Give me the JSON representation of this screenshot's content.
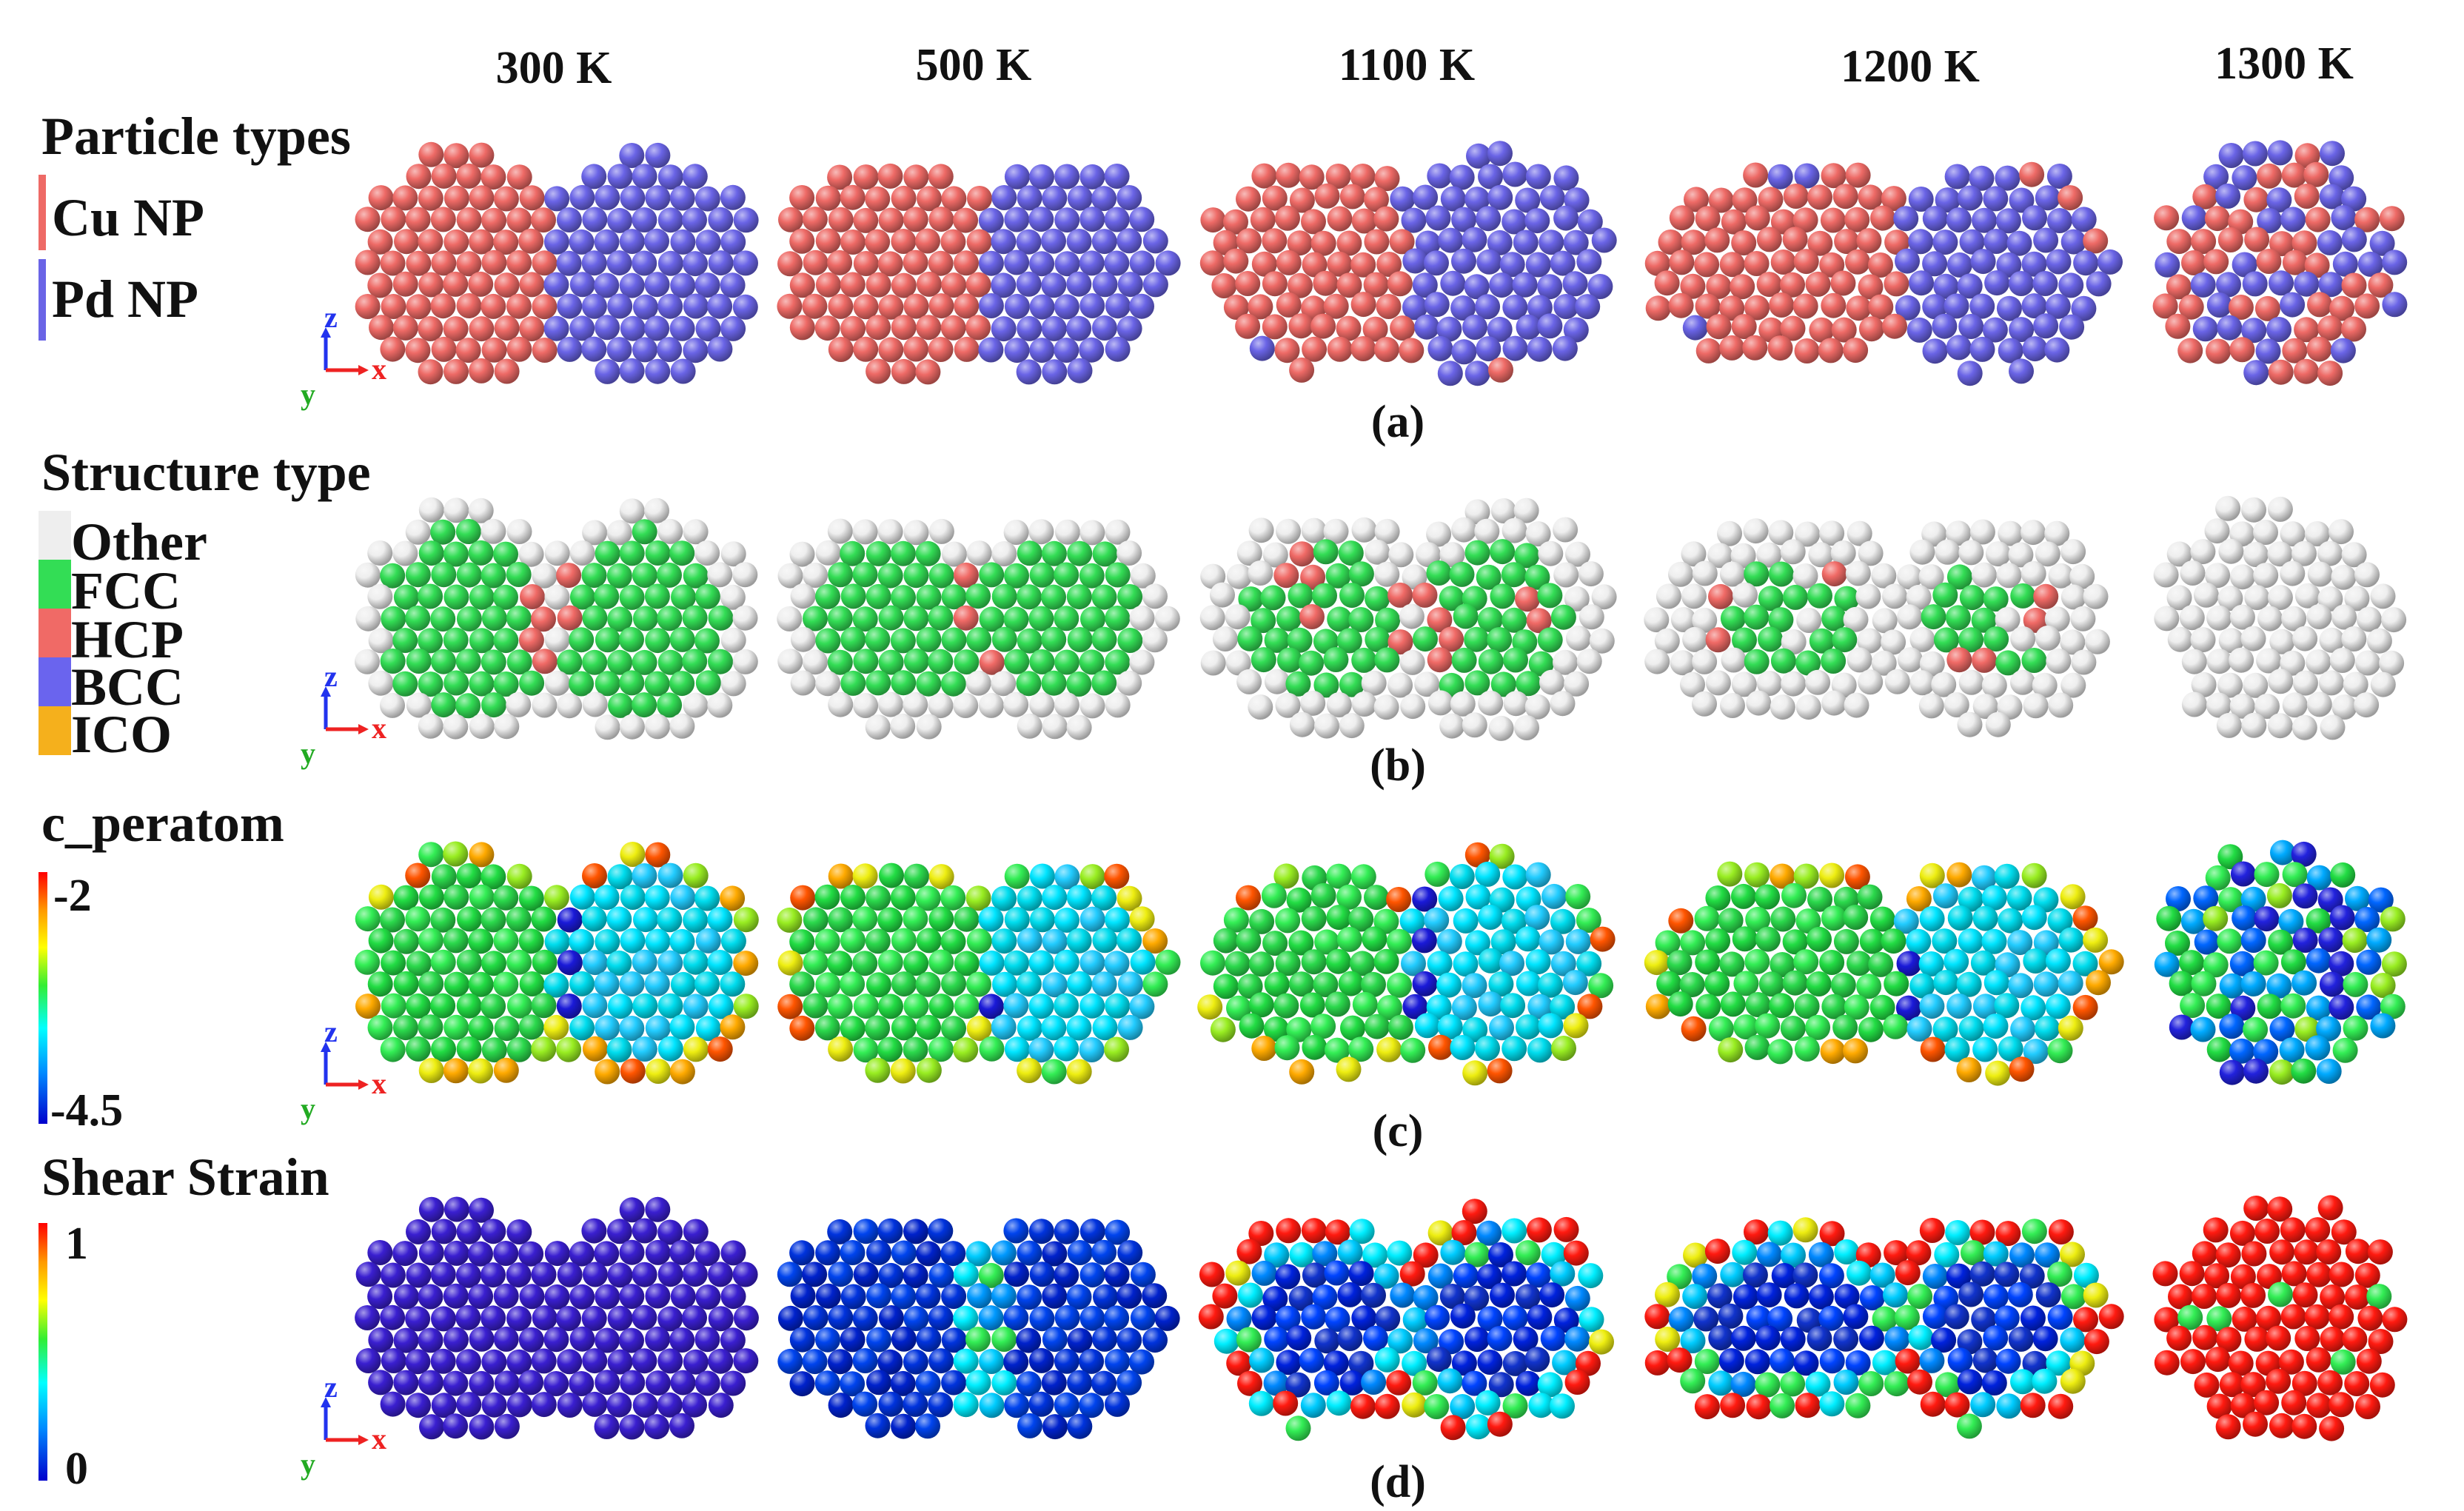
{
  "temperatures": [
    "300 K",
    "500 K",
    "1100 K",
    "1200 K",
    "1300 K"
  ],
  "rows": [
    {
      "key": "particle",
      "panel_label": "(a)",
      "legend_title": "Particle types",
      "legend_type": "categorical",
      "legend_items": [
        {
          "label": "Cu NP",
          "color": "#ee6a66"
        },
        {
          "label": "Pd NP",
          "color": "#6a64e6"
        }
      ]
    },
    {
      "key": "structure",
      "panel_label": "(b)",
      "legend_title": "Structure type",
      "legend_type": "categorical",
      "legend_items": [
        {
          "label": "Other",
          "color": "#eeeeee"
        },
        {
          "label": "FCC",
          "color": "#33dd55"
        },
        {
          "label": "HCP",
          "color": "#f06a66"
        },
        {
          "label": "BCC",
          "color": "#6a64ee"
        },
        {
          "label": "ICO",
          "color": "#f5b01c"
        }
      ]
    },
    {
      "key": "peratom",
      "panel_label": "(c)",
      "legend_title": "c_peratom",
      "legend_type": "colorbar",
      "colorbar_max": "-2",
      "colorbar_min": "-4.5"
    },
    {
      "key": "shear",
      "panel_label": "(d)",
      "legend_title": "Shear Strain",
      "legend_type": "colorbar",
      "colorbar_max": "1",
      "colorbar_min": "0"
    }
  ],
  "axes": {
    "z": "z",
    "x": "x",
    "y": "y"
  },
  "colors": {
    "cu": "#ee6a66",
    "pd": "#6a64e6",
    "other": "#eeeeee",
    "fcc": "#33dd55",
    "hcp": "#f06a66",
    "bcc": "#6a64ee",
    "ico": "#f5b01c",
    "shear_low": "#3a1fd0",
    "shear_high": "#ff1a10",
    "axis_z": "#2233ee",
    "axis_x": "#ee2222",
    "axis_y": "#22aa22"
  }
}
